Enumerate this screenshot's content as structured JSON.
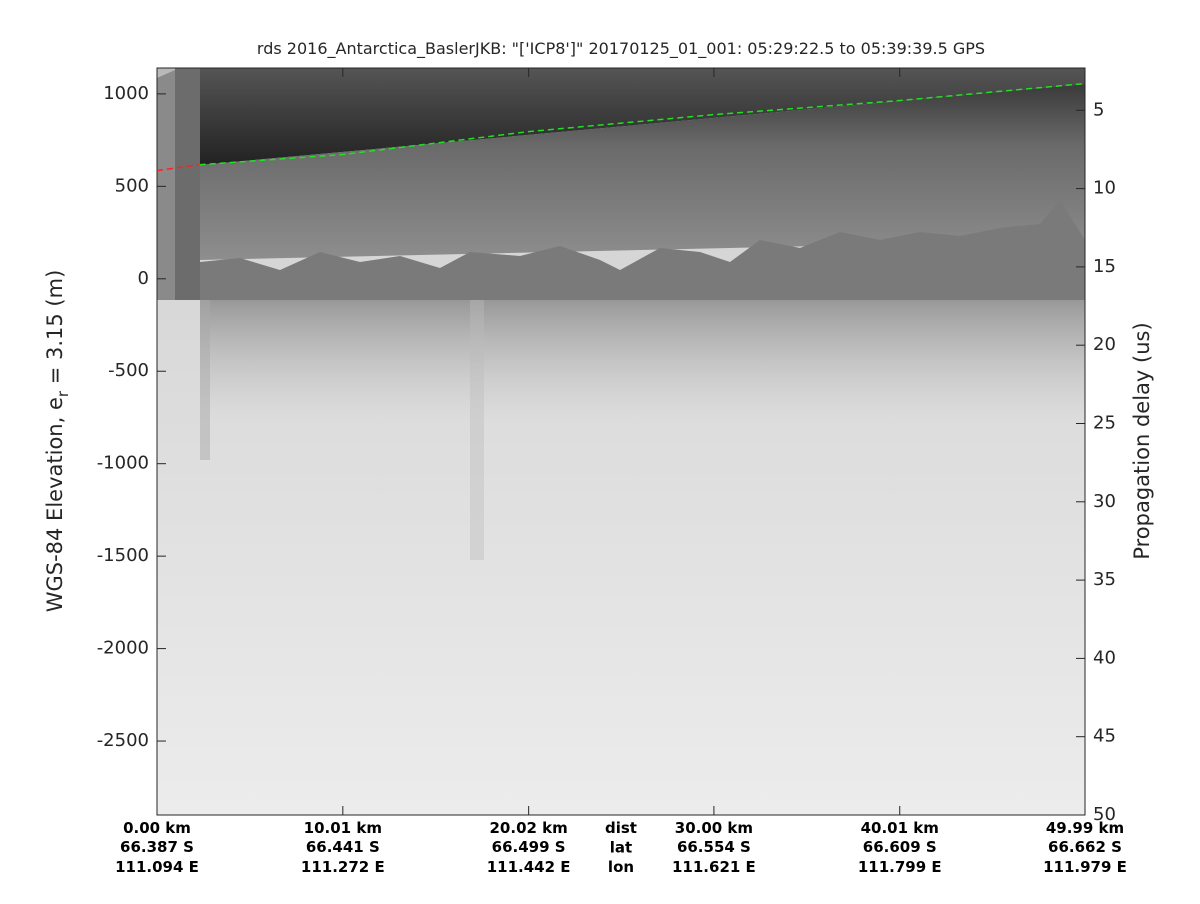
{
  "chart_data": {
    "type": "line",
    "title": "rds 2016_Antarctica_BaslerJKB: \"['ICP8']\"  20170125_01_001: 05:29:22.5 to 05:39:39.5 GPS",
    "ylabel": [
      "WGS-84 Elevation, e",
      "r",
      " = 3.15 (m)"
    ],
    "y2label": "Propagation delay (us)",
    "xlim": [
      0,
      49.99
    ],
    "xticks": [
      {
        "value": 0,
        "label": "0.00 km"
      },
      {
        "value": 10.01,
        "label": "10.01 km"
      },
      {
        "value": 20.02,
        "label": "20.02 km"
      },
      {
        "value": 30.0,
        "label": "30.00 km"
      },
      {
        "value": 40.01,
        "label": "40.01 km"
      },
      {
        "value": 49.99,
        "label": "49.99 km"
      }
    ],
    "xtick_lat": [
      "66.387 S",
      "66.441 S",
      "66.499 S",
      "66.554 S",
      "66.609 S",
      "66.662 S"
    ],
    "xtick_lon": [
      "111.094 E",
      "111.272 E",
      "111.442 E",
      "111.621 E",
      "111.799 E",
      "111.979 E"
    ],
    "xtick_row_names": [
      "dist",
      "lat",
      "lon"
    ],
    "ylim": [
      -2900,
      1140
    ],
    "yticks": [
      1000,
      500,
      0,
      -500,
      -1000,
      -1500,
      -2000,
      -2500
    ],
    "y2lim": [
      2.3,
      50
    ],
    "y2ticks": [
      5,
      10,
      15,
      20,
      25,
      30,
      35,
      40,
      45,
      50
    ],
    "series": [
      {
        "color": "#ff2020",
        "dashed": true,
        "x": [
          0,
          2.3
        ],
        "values": [
          585,
          617
        ]
      },
      {
        "color": "#20e020",
        "dashed": true,
        "x": [
          2.3,
          10.01,
          20.02,
          30.0,
          40.01,
          49.99
        ],
        "values": [
          617,
          672,
          796,
          888,
          964,
          1056
        ]
      }
    ]
  }
}
